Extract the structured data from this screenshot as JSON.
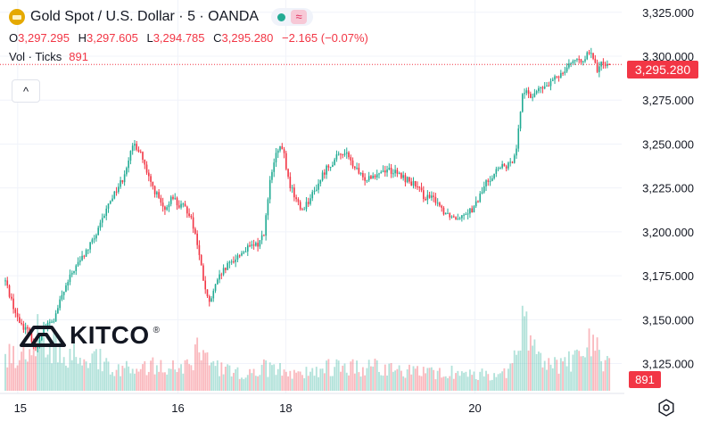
{
  "header": {
    "title": "Gold Spot / U.S. Dollar · 5 · OANDA",
    "ohlc": [
      {
        "key": "O",
        "value": "3,297.295"
      },
      {
        "key": "H",
        "value": "3,297.605"
      },
      {
        "key": "L",
        "value": "3,294.785"
      },
      {
        "key": "C",
        "value": "3,295.280"
      }
    ],
    "change": "−2.165 (−0.07%)",
    "vol_label": "Vol · Ticks",
    "vol_value": "891",
    "collapse_glyph": "^"
  },
  "price_tag": "3,295.280",
  "vol_tag": "891",
  "logo": {
    "text": "KITCO",
    "mark": "®"
  },
  "colors": {
    "up": "#22ab94",
    "down": "#f23645",
    "grid": "#f0f3fa",
    "text": "#131722",
    "symbol_icon": "#e5a900"
  },
  "icons": {
    "symbol": "gold-bar-icon",
    "status": "green-dot-icon",
    "wave": "wave-icon",
    "settings": "gear-icon",
    "collapse": "chevron-up-icon"
  },
  "chart_data": {
    "type": "candlestick",
    "x_tick_labels": [
      "15",
      "16",
      "18",
      "20"
    ],
    "y_tick_labels": [
      "3,325.000",
      "3,300.000",
      "3,275.000",
      "3,250.000",
      "3,225.000",
      "3,200.000",
      "3,175.000",
      "3,150.000",
      "3,125.000"
    ],
    "ylim": [
      3108,
      3332
    ],
    "xlim": [
      0,
      100
    ],
    "last_price": 3295.28,
    "grid": true,
    "price_path": [
      [
        0,
        3172
      ],
      [
        2,
        3150
      ],
      [
        4,
        3142
      ],
      [
        5,
        3132
      ],
      [
        6,
        3145
      ],
      [
        8,
        3150
      ],
      [
        9,
        3162
      ],
      [
        11,
        3178
      ],
      [
        13,
        3188
      ],
      [
        15,
        3200
      ],
      [
        17,
        3218
      ],
      [
        19,
        3230
      ],
      [
        20,
        3242
      ],
      [
        21,
        3250
      ],
      [
        22,
        3245
      ],
      [
        23,
        3232
      ],
      [
        25,
        3218
      ],
      [
        26,
        3210
      ],
      [
        27,
        3222
      ],
      [
        28,
        3215
      ],
      [
        29,
        3214
      ],
      [
        30,
        3210
      ],
      [
        31,
        3196
      ],
      [
        32,
        3175
      ],
      [
        33,
        3158
      ],
      [
        34,
        3168
      ],
      [
        35,
        3176
      ],
      [
        37,
        3184
      ],
      [
        39,
        3190
      ],
      [
        41,
        3193
      ],
      [
        42,
        3200
      ],
      [
        43,
        3230
      ],
      [
        44,
        3245
      ],
      [
        45,
        3248
      ],
      [
        46,
        3228
      ],
      [
        47,
        3220
      ],
      [
        48,
        3212
      ],
      [
        50,
        3222
      ],
      [
        52,
        3236
      ],
      [
        54,
        3243
      ],
      [
        55,
        3246
      ],
      [
        56,
        3240
      ],
      [
        58,
        3230
      ],
      [
        60,
        3233
      ],
      [
        62,
        3236
      ],
      [
        64,
        3232
      ],
      [
        66,
        3228
      ],
      [
        68,
        3220
      ],
      [
        70,
        3218
      ],
      [
        71,
        3212
      ],
      [
        73,
        3208
      ],
      [
        75,
        3212
      ],
      [
        76,
        3213
      ],
      [
        78,
        3228
      ],
      [
        80,
        3236
      ],
      [
        82,
        3238
      ],
      [
        83,
        3250
      ],
      [
        84,
        3282
      ],
      [
        85,
        3276
      ],
      [
        86,
        3280
      ],
      [
        88,
        3283
      ],
      [
        90,
        3290
      ],
      [
        92,
        3298
      ],
      [
        93,
        3296
      ],
      [
        94,
        3300
      ],
      [
        95,
        3301
      ],
      [
        96,
        3292
      ],
      [
        97,
        3297
      ],
      [
        98,
        3295.28
      ]
    ],
    "volume_ticks_max": 1800,
    "volume_profile": [
      [
        0,
        600
      ],
      [
        4,
        800
      ],
      [
        6,
        1200
      ],
      [
        7,
        900
      ],
      [
        10,
        700
      ],
      [
        12,
        800
      ],
      [
        18,
        450
      ],
      [
        21,
        500
      ],
      [
        22,
        420
      ],
      [
        26,
        500
      ],
      [
        30,
        450
      ],
      [
        31,
        800
      ],
      [
        33,
        500
      ],
      [
        35,
        400
      ],
      [
        40,
        300
      ],
      [
        42,
        450
      ],
      [
        44,
        400
      ],
      [
        48,
        300
      ],
      [
        50,
        380
      ],
      [
        55,
        500
      ],
      [
        58,
        380
      ],
      [
        60,
        500
      ],
      [
        62,
        400
      ],
      [
        66,
        350
      ],
      [
        70,
        320
      ],
      [
        73,
        350
      ],
      [
        76,
        300
      ],
      [
        80,
        320
      ],
      [
        82,
        400
      ],
      [
        83,
        650
      ],
      [
        84,
        1600
      ],
      [
        85,
        900
      ],
      [
        87,
        650
      ],
      [
        88,
        500
      ],
      [
        92,
        560
      ],
      [
        95,
        900
      ],
      [
        97,
        600
      ],
      [
        98,
        500
      ]
    ]
  }
}
